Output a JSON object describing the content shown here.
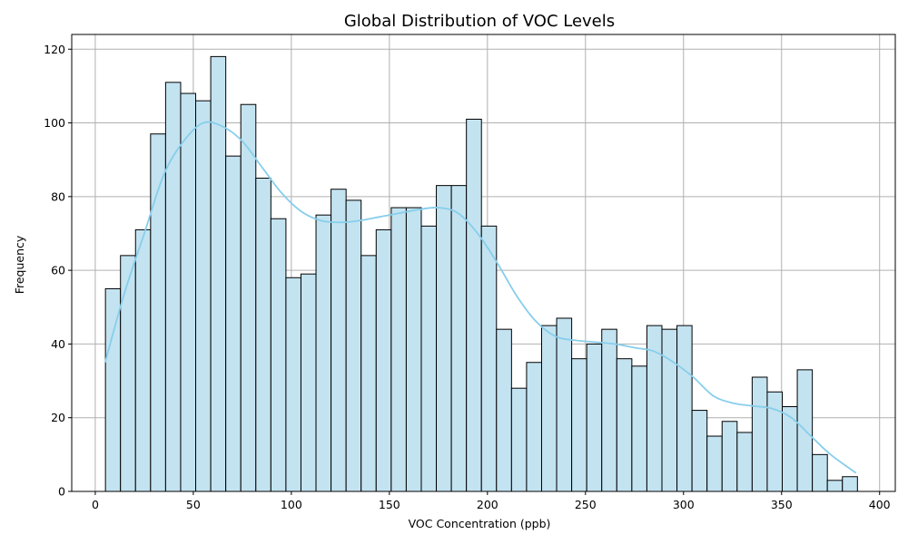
{
  "chart_data": {
    "type": "bar",
    "title": "Global Distribution of VOC Levels",
    "xlabel": "VOC Concentration (ppb)",
    "ylabel": "Frequency",
    "xlim": [
      -12,
      408
    ],
    "ylim": [
      0,
      124
    ],
    "xticks": [
      0,
      50,
      100,
      150,
      200,
      250,
      300,
      350,
      400
    ],
    "yticks": [
      0,
      20,
      40,
      60,
      80,
      100,
      120
    ],
    "grid": true,
    "bin_start": 5.2,
    "bin_width": 7.67,
    "values": [
      55,
      64,
      71,
      97,
      111,
      108,
      106,
      118,
      91,
      105,
      85,
      74,
      58,
      59,
      75,
      82,
      79,
      64,
      71,
      77,
      77,
      72,
      83,
      83,
      101,
      72,
      44,
      28,
      35,
      45,
      47,
      36,
      40,
      44,
      36,
      34,
      45,
      44,
      45,
      22,
      15,
      19,
      16,
      31,
      27,
      23,
      33,
      10,
      3,
      4
    ],
    "kde": {
      "x": [
        5,
        15,
        25,
        35,
        45,
        55,
        65,
        75,
        85,
        95,
        105,
        115,
        125,
        135,
        145,
        155,
        165,
        175,
        185,
        195,
        205,
        215,
        225,
        235,
        245,
        255,
        265,
        275,
        285,
        295,
        305,
        315,
        325,
        335,
        345,
        355,
        365,
        375,
        388
      ],
      "y": [
        35,
        54,
        70,
        86,
        95,
        100,
        99,
        95,
        88,
        81,
        76,
        73.5,
        73,
        73.5,
        74.5,
        75.5,
        76.5,
        77,
        75.5,
        70,
        62,
        53,
        46,
        42,
        41,
        40.5,
        40,
        39,
        38,
        35,
        31,
        26,
        24,
        23.2,
        22.5,
        20,
        15,
        10,
        5
      ]
    },
    "colors": {
      "bar_fill": "#c3e3f1",
      "bar_edge": "#000000",
      "kde_line": "#87ceeb",
      "grid": "#b0b0b0"
    }
  }
}
